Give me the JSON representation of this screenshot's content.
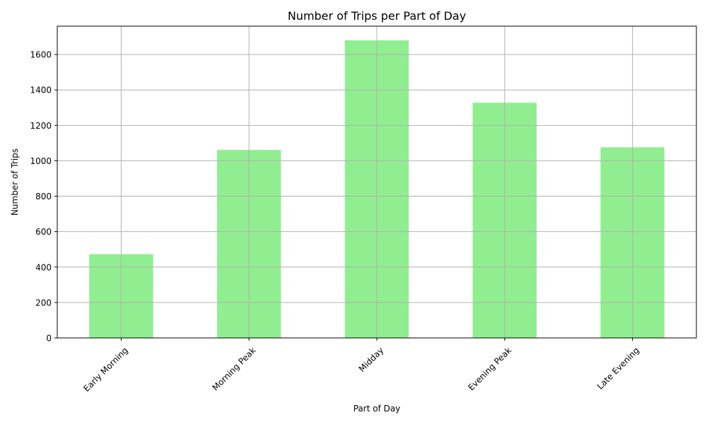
{
  "chart_data": {
    "type": "bar",
    "title": "Number of Trips per Part of Day",
    "xlabel": "Part of Day",
    "ylabel": "Number of Trips",
    "categories": [
      "Early Morning",
      "Morning Peak",
      "Midday",
      "Evening Peak",
      "Late Evening"
    ],
    "values": [
      473,
      1061,
      1680,
      1328,
      1076
    ],
    "ylim": [
      0,
      1760
    ],
    "yticks": [
      0,
      200,
      400,
      600,
      800,
      1000,
      1200,
      1400,
      1600
    ],
    "grid": true,
    "bar_color": "#90ee90",
    "grid_color": "#b0b0b0",
    "xtick_rotation_deg": 45
  }
}
